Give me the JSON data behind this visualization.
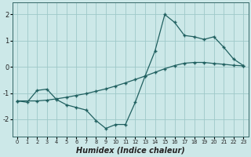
{
  "xlabel": "Humidex (Indice chaleur)",
  "bg_color": "#cce8e8",
  "grid_color": "#9ec8c8",
  "line_color": "#206060",
  "xlim": [
    -0.5,
    23.5
  ],
  "ylim": [
    -2.65,
    2.45
  ],
  "xticks": [
    0,
    1,
    2,
    3,
    4,
    5,
    6,
    7,
    8,
    9,
    10,
    11,
    12,
    13,
    14,
    15,
    16,
    17,
    18,
    19,
    20,
    21,
    22,
    23
  ],
  "yticks": [
    -2,
    -1,
    0,
    1,
    2
  ],
  "curve1_x": [
    0,
    1,
    2,
    3,
    4,
    5,
    6,
    7,
    8,
    9,
    10,
    11,
    12,
    13,
    14,
    15,
    16,
    17,
    18,
    19,
    20,
    21,
    22,
    23
  ],
  "curve1_y": [
    -1.3,
    -1.35,
    -0.9,
    -0.85,
    -1.25,
    -1.45,
    -1.55,
    -1.65,
    -2.05,
    -2.35,
    -2.2,
    -2.2,
    -1.35,
    -0.35,
    0.6,
    2.0,
    1.7,
    1.2,
    1.15,
    1.05,
    1.15,
    0.75,
    0.3,
    0.05
  ],
  "curve2_x": [
    0,
    2,
    3,
    4,
    5,
    6,
    7,
    8,
    9,
    10,
    11,
    12,
    13,
    14,
    15,
    16,
    17,
    18,
    19,
    20,
    21,
    22,
    23
  ],
  "curve2_y": [
    -1.3,
    -1.3,
    -1.27,
    -1.22,
    -1.16,
    -1.09,
    -1.02,
    -0.93,
    -0.84,
    -0.73,
    -0.61,
    -0.48,
    -0.35,
    -0.21,
    -0.07,
    0.05,
    0.14,
    0.17,
    0.17,
    0.13,
    0.1,
    0.06,
    0.04
  ]
}
